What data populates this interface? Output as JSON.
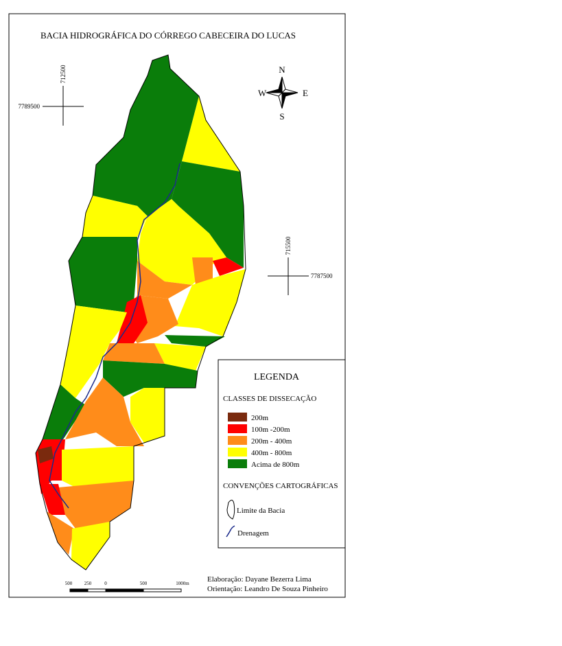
{
  "title": "BACIA HIDROGRÁFICA DO CÓRREGO CABECEIRA DO LUCAS",
  "coordinates": {
    "top_left": {
      "x": "712500",
      "y": "7789500"
    },
    "right": {
      "x": "715500",
      "y": "7787500"
    }
  },
  "north_arrow": {
    "n": "N",
    "s": "S",
    "e": "E",
    "w": "W"
  },
  "legend": {
    "title": "LEGENDA",
    "classes_title": "CLASSES DE DISSECAÇÃO",
    "classes": [
      {
        "label": "200m",
        "color": "#7a2a0e"
      },
      {
        "label": "100m -200m",
        "color": "#ff0000"
      },
      {
        "label": "200m - 400m",
        "color": "#ff8c1a"
      },
      {
        "label": "400m - 800m",
        "color": "#ffff00"
      },
      {
        "label": "Acima de 800m",
        "color": "#0a7d0a"
      }
    ],
    "conventions_title": "CONVENÇÕES CARTOGRÁFICAS",
    "conventions": [
      "Limite da Bacia",
      "Drenagem"
    ]
  },
  "credits": [
    "Elaboração: Dayane Bezerra Lima",
    "Orientação: Leandro De Souza Pinheiro"
  ],
  "scale_labels": [
    "500",
    "250",
    "0",
    "500",
    "1000m"
  ]
}
